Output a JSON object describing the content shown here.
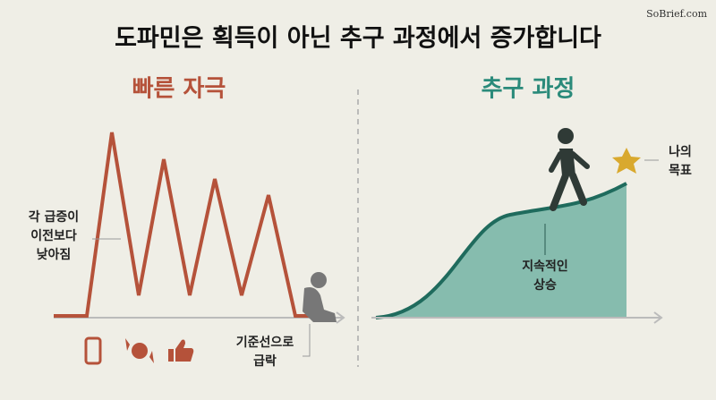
{
  "watermark": "SoBrief.com",
  "title": "도파민은 획득이 아닌 추구 과정에서 증가합니다",
  "left": {
    "title": "빠른 자극",
    "annotation": [
      "각 급증이",
      "이전보다",
      "낮아짐"
    ],
    "baseline_note": [
      "기준선으로",
      "급락"
    ]
  },
  "right": {
    "title": "추구 과정",
    "goal": [
      "나의",
      "목표"
    ],
    "rise": [
      "지속적인",
      "상승"
    ]
  }
}
